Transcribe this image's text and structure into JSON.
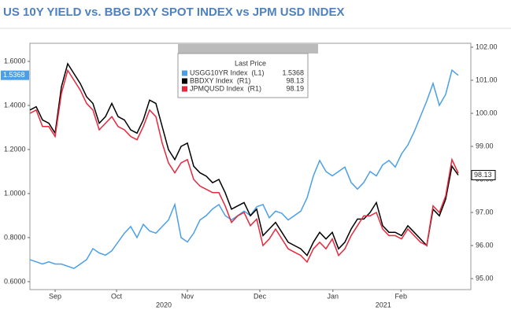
{
  "chart_data": {
    "type": "line",
    "title": "US 10Y YIELD vs. BBG DXY SPOT INDEX vs JPM USD INDEX",
    "legend_title": "Last Price",
    "x": [
      0,
      1,
      2,
      3,
      4,
      5,
      6,
      7,
      8,
      9,
      10,
      11,
      12,
      13,
      14,
      15,
      16,
      17,
      18,
      19,
      20,
      21,
      22,
      23,
      24,
      25,
      26,
      27,
      28,
      29,
      30,
      31,
      32,
      33,
      34,
      35,
      36,
      37,
      38,
      39,
      40,
      41,
      42,
      43,
      44,
      45,
      46,
      47,
      48,
      49,
      50,
      51,
      52,
      53,
      54,
      55,
      56,
      57,
      58,
      59,
      60,
      61,
      62,
      63,
      64,
      65,
      66,
      67,
      68
    ],
    "xlim": [
      0,
      70
    ],
    "xticks": [
      {
        "value": 4,
        "label": "Sep"
      },
      {
        "value": 13.75,
        "label": "Oct"
      },
      {
        "value": 25,
        "label": "Nov"
      },
      {
        "value": 36.5,
        "label": "Dec"
      },
      {
        "value": 48.1,
        "label": "Jan"
      },
      {
        "value": 58.9,
        "label": "Feb"
      }
    ],
    "year_ticks": [
      {
        "value": 21.25,
        "label": "2020"
      },
      {
        "value": 56.1,
        "label": "2021"
      }
    ],
    "ylim": [
      0.564,
      1.682
    ],
    "yticks": [
      {
        "value": 0.6,
        "label": "0.6000"
      },
      {
        "value": 0.8,
        "label": "0.8000"
      },
      {
        "value": 1.0,
        "label": "1.0000"
      },
      {
        "value": 1.2,
        "label": "1.2000"
      },
      {
        "value": 1.4,
        "label": "1.4000"
      },
      {
        "value": 1.6,
        "label": "1.6000"
      }
    ],
    "y2lim": [
      94.667,
      102.119
    ],
    "y2ticks": [
      {
        "value": 95,
        "label": "95.00"
      },
      {
        "value": 96,
        "label": "96.00"
      },
      {
        "value": 97,
        "label": "97.00"
      },
      {
        "value": 98,
        "label": "98.00"
      },
      {
        "value": 99,
        "label": "99.00"
      },
      {
        "value": 100,
        "label": "100.00"
      },
      {
        "value": 101,
        "label": "101.00"
      },
      {
        "value": 102,
        "label": "102.00"
      }
    ],
    "series": [
      {
        "name": "USGG10YR Index  (L1)",
        "color": "#4a9fe8",
        "axis": "y",
        "values": [
          0.7,
          0.69,
          0.68,
          0.69,
          0.68,
          0.68,
          0.67,
          0.66,
          0.68,
          0.7,
          0.75,
          0.73,
          0.72,
          0.74,
          0.78,
          0.82,
          0.85,
          0.8,
          0.86,
          0.83,
          0.82,
          0.85,
          0.88,
          0.95,
          0.8,
          0.78,
          0.82,
          0.88,
          0.9,
          0.93,
          0.95,
          0.9,
          0.88,
          0.9,
          0.92,
          0.9,
          0.94,
          0.95,
          0.89,
          0.92,
          0.91,
          0.88,
          0.9,
          0.92,
          0.98,
          1.08,
          1.15,
          1.1,
          1.08,
          1.1,
          1.12,
          1.05,
          1.02,
          1.05,
          1.1,
          1.08,
          1.13,
          1.15,
          1.12,
          1.18,
          1.22,
          1.28,
          1.35,
          1.42,
          1.5,
          1.4,
          1.45,
          1.56,
          1.5368
        ]
      },
      {
        "name": "BBDXY Index  (R1)",
        "color": "#000000",
        "axis": "y2",
        "values": [
          100.1,
          100.2,
          99.8,
          99.7,
          99.4,
          100.8,
          101.5,
          101.2,
          100.9,
          100.5,
          100.3,
          99.7,
          99.9,
          100.3,
          99.9,
          99.8,
          99.5,
          99.4,
          99.8,
          100.4,
          100.3,
          99.6,
          98.9,
          98.6,
          99.0,
          99.1,
          98.4,
          98.2,
          98.1,
          97.9,
          98.0,
          97.6,
          97.1,
          97.2,
          97.3,
          96.9,
          97.1,
          96.3,
          96.5,
          96.7,
          96.4,
          96.1,
          96.0,
          95.9,
          95.7,
          96.1,
          96.4,
          96.2,
          96.4,
          95.9,
          96.1,
          96.5,
          96.8,
          96.8,
          97.0,
          97.3,
          96.6,
          96.4,
          96.4,
          96.3,
          96.6,
          96.4,
          96.2,
          96.0,
          97.1,
          96.9,
          97.4,
          98.4,
          98.13
        ]
      },
      {
        "name": "JPMQUSD Index  (R1)",
        "color": "#e8283c",
        "axis": "y2",
        "values": [
          100.0,
          100.1,
          99.6,
          99.6,
          99.3,
          100.6,
          101.3,
          101.0,
          100.7,
          100.3,
          100.1,
          99.5,
          99.7,
          99.9,
          99.6,
          99.5,
          99.3,
          99.2,
          99.6,
          100.1,
          99.9,
          99.1,
          98.5,
          98.2,
          98.5,
          98.6,
          98.0,
          97.8,
          97.7,
          97.6,
          97.6,
          97.2,
          96.7,
          96.9,
          97.0,
          96.6,
          96.8,
          96.0,
          96.2,
          96.5,
          96.2,
          95.9,
          95.8,
          95.7,
          95.5,
          95.9,
          96.1,
          95.9,
          96.2,
          95.7,
          95.9,
          96.3,
          96.6,
          96.9,
          96.9,
          97.0,
          96.5,
          96.3,
          96.3,
          96.2,
          96.5,
          96.3,
          96.1,
          96.0,
          97.2,
          97.0,
          97.5,
          98.6,
          98.19
        ]
      }
    ]
  }
}
